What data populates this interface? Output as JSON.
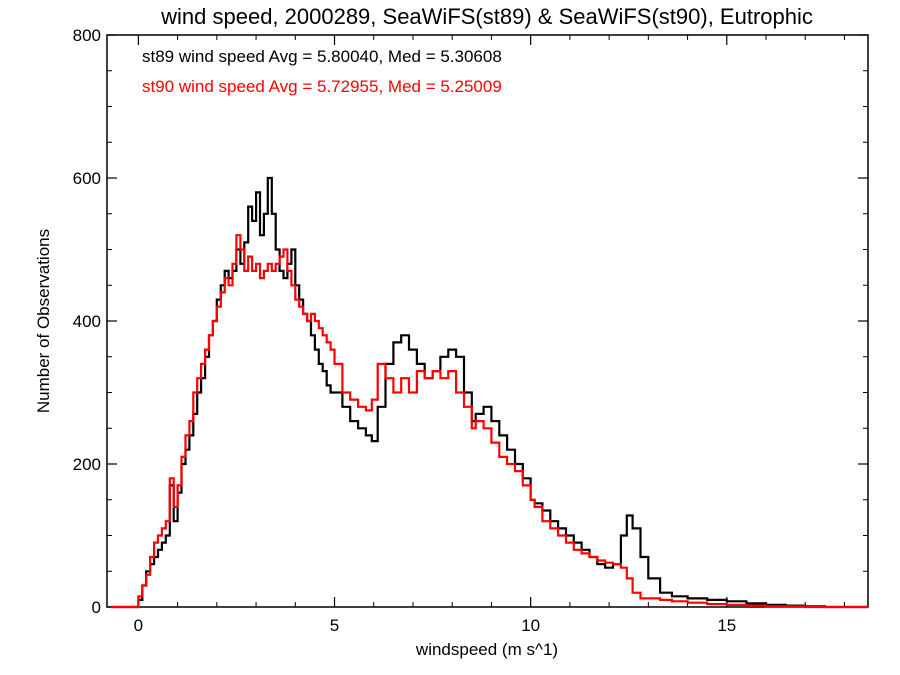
{
  "chart_data": {
    "type": "line",
    "title": "wind speed, 2000289, SeaWiFS(st89) & SeaWiFS(st90), Eutrophic",
    "xlabel": "windspeed (m s^1)",
    "ylabel": "Number of Observations",
    "xlim": [
      -0.8,
      18.6
    ],
    "ylim": [
      0,
      800
    ],
    "xticks": [
      0,
      5,
      10,
      15
    ],
    "yticks": [
      0,
      200,
      400,
      600,
      800
    ],
    "grid": false,
    "legend_position": "top-left",
    "colors": {
      "st89": "#000000",
      "st90": "#ff0000"
    },
    "series": [
      {
        "name": "st89",
        "legend": "st89 wind speed Avg = 5.80040, Med = 5.30608",
        "color": "#000000",
        "x": [
          -0.7,
          -0.4,
          -0.1,
          0,
          0.1,
          0.2,
          0.3,
          0.4,
          0.5,
          0.6,
          0.7,
          0.8,
          0.9,
          1.0,
          1.1,
          1.2,
          1.3,
          1.4,
          1.5,
          1.6,
          1.7,
          1.8,
          1.9,
          2.0,
          2.1,
          2.2,
          2.3,
          2.4,
          2.5,
          2.6,
          2.7,
          2.8,
          2.9,
          3.0,
          3.1,
          3.2,
          3.3,
          3.4,
          3.5,
          3.6,
          3.7,
          3.8,
          3.9,
          4.0,
          4.1,
          4.2,
          4.3,
          4.4,
          4.5,
          4.6,
          4.7,
          4.8,
          4.9,
          5.0,
          5.2,
          5.4,
          5.6,
          5.8,
          5.95,
          6.1,
          6.3,
          6.5,
          6.7,
          6.9,
          7.1,
          7.3,
          7.5,
          7.7,
          7.9,
          8.1,
          8.3,
          8.5,
          8.6,
          8.8,
          9.0,
          9.2,
          9.4,
          9.6,
          9.8,
          10.0,
          10.1,
          10.3,
          10.5,
          10.7,
          10.9,
          11.1,
          11.3,
          11.5,
          11.7,
          11.9,
          12.1,
          12.3,
          12.45,
          12.6,
          12.8,
          13.0,
          13.3,
          13.6,
          14.0,
          14.5,
          15.0,
          15.5,
          16.0,
          16.5,
          17.0,
          17.5,
          18.0,
          18.5
        ],
        "y": [
          0,
          0,
          0,
          10,
          30,
          50,
          60,
          70,
          80,
          90,
          100,
          170,
          120,
          160,
          200,
          220,
          240,
          270,
          300,
          320,
          350,
          380,
          400,
          430,
          450,
          470,
          460,
          470,
          500,
          480,
          510,
          560,
          540,
          580,
          520,
          550,
          600,
          550,
          500,
          470,
          460,
          480,
          500,
          450,
          430,
          410,
          400,
          380,
          360,
          340,
          330,
          310,
          300,
          300,
          280,
          260,
          250,
          240,
          232,
          280,
          340,
          370,
          380,
          360,
          340,
          320,
          330,
          350,
          360,
          350,
          300,
          260,
          270,
          280,
          260,
          240,
          220,
          200,
          180,
          150,
          145,
          135,
          120,
          110,
          100,
          90,
          80,
          70,
          60,
          55,
          60,
          100,
          128,
          110,
          70,
          40,
          20,
          15,
          12,
          10,
          8,
          5,
          3,
          2,
          1,
          0,
          0,
          0
        ]
      },
      {
        "name": "st90",
        "legend": "st90 wind speed Avg = 5.72955, Med = 5.25009",
        "color": "#ff0000",
        "x": [
          -0.7,
          -0.4,
          -0.1,
          0,
          0.1,
          0.2,
          0.3,
          0.4,
          0.5,
          0.6,
          0.7,
          0.8,
          0.9,
          1.0,
          1.1,
          1.2,
          1.3,
          1.4,
          1.5,
          1.6,
          1.7,
          1.8,
          1.9,
          2.0,
          2.1,
          2.2,
          2.3,
          2.4,
          2.5,
          2.6,
          2.7,
          2.8,
          2.9,
          3.0,
          3.1,
          3.2,
          3.3,
          3.4,
          3.5,
          3.6,
          3.7,
          3.8,
          3.9,
          4.0,
          4.1,
          4.2,
          4.3,
          4.4,
          4.5,
          4.6,
          4.7,
          4.8,
          4.9,
          5.0,
          5.2,
          5.4,
          5.6,
          5.8,
          5.95,
          6.1,
          6.3,
          6.5,
          6.7,
          6.9,
          7.1,
          7.3,
          7.5,
          7.7,
          7.9,
          8.1,
          8.3,
          8.5,
          8.6,
          8.8,
          9.0,
          9.2,
          9.4,
          9.6,
          9.8,
          10.0,
          10.1,
          10.3,
          10.5,
          10.7,
          10.9,
          11.1,
          11.3,
          11.5,
          11.7,
          11.9,
          12.1,
          12.3,
          12.45,
          12.6,
          12.8,
          13.0,
          13.3,
          13.6,
          14.0,
          14.5,
          15.0,
          15.5,
          16.0,
          16.5,
          17.0,
          17.5,
          18.0,
          18.5
        ],
        "y": [
          0,
          0,
          0,
          15,
          30,
          45,
          70,
          90,
          100,
          110,
          120,
          180,
          140,
          170,
          210,
          240,
          260,
          300,
          320,
          340,
          360,
          380,
          400,
          420,
          440,
          460,
          450,
          480,
          520,
          500,
          470,
          490,
          470,
          480,
          460,
          470,
          480,
          470,
          480,
          490,
          500,
          470,
          450,
          430,
          420,
          410,
          400,
          410,
          400,
          390,
          380,
          370,
          360,
          340,
          300,
          290,
          280,
          275,
          290,
          340,
          320,
          300,
          320,
          300,
          330,
          320,
          330,
          320,
          330,
          300,
          280,
          250,
          260,
          250,
          230,
          210,
          200,
          190,
          170,
          150,
          140,
          120,
          110,
          100,
          90,
          80,
          75,
          70,
          65,
          62,
          60,
          55,
          40,
          20,
          12,
          12,
          10,
          8,
          6,
          4,
          3,
          2,
          1,
          1,
          0,
          0,
          0,
          0
        ]
      }
    ]
  }
}
